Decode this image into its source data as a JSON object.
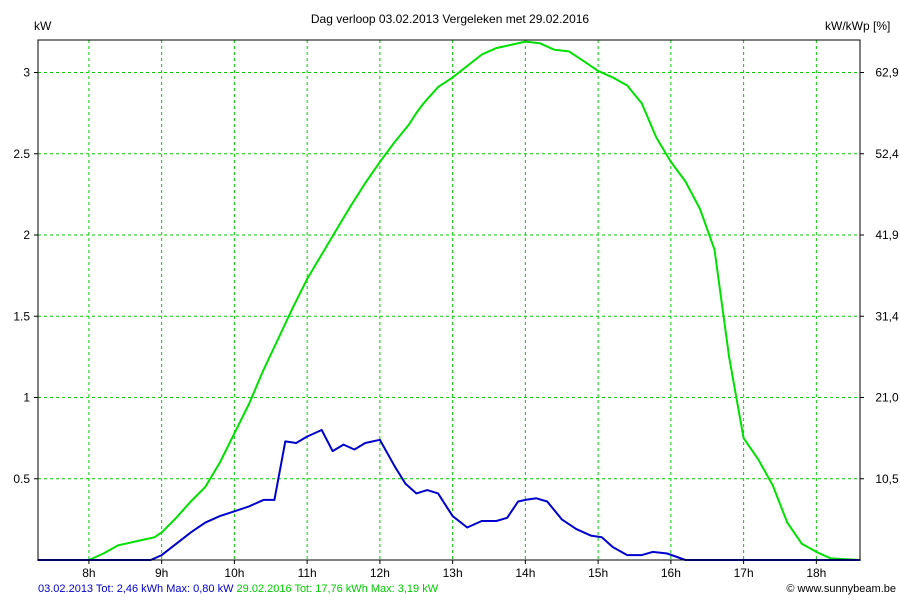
{
  "chart_data": {
    "type": "line",
    "title": "Dag  verloop 03.02.2013   Vergeleken met 29.02.2016",
    "ylabel_left": "kW",
    "ylabel_right": "kW/kWp [%]",
    "xlim": [
      7.3,
      18.6
    ],
    "ylim": [
      0,
      3.2
    ],
    "x_ticks": [
      8,
      9,
      10,
      11,
      12,
      13,
      14,
      15,
      16,
      17,
      18
    ],
    "x_tick_labels": [
      "8h",
      "9h",
      "10h",
      "11h",
      "12h",
      "13h",
      "14h",
      "15h",
      "16h",
      "17h",
      "18h"
    ],
    "y_ticks": [
      0.5,
      1,
      1.5,
      2,
      2.5,
      3
    ],
    "y_tick_labels": [
      "0.5",
      "1",
      "1.5",
      "2",
      "2.5",
      "3"
    ],
    "y2_tick_labels": [
      "10,5",
      "21,0",
      "31,4",
      "41,9",
      "52,4",
      "62,9"
    ],
    "grid": true,
    "series": [
      {
        "name": "29.02.2016",
        "color": "#00e000",
        "x": [
          7.3,
          7.75,
          8.0,
          8.2,
          8.4,
          8.6,
          8.8,
          8.9,
          9.0,
          9.2,
          9.4,
          9.6,
          9.8,
          10.0,
          10.2,
          10.4,
          10.6,
          10.8,
          11.0,
          11.2,
          11.4,
          11.6,
          11.8,
          12.0,
          12.2,
          12.4,
          12.5,
          12.6,
          12.8,
          13.0,
          13.2,
          13.4,
          13.6,
          13.8,
          14.0,
          14.2,
          14.4,
          14.6,
          14.8,
          15.0,
          15.2,
          15.4,
          15.6,
          15.8,
          16.0,
          16.2,
          16.4,
          16.6,
          16.8,
          17.0,
          17.2,
          17.4,
          17.6,
          17.8,
          18.0,
          18.2,
          18.6
        ],
        "y": [
          0,
          0,
          0,
          0.04,
          0.09,
          0.11,
          0.13,
          0.14,
          0.17,
          0.26,
          0.36,
          0.45,
          0.6,
          0.78,
          0.96,
          1.17,
          1.36,
          1.55,
          1.73,
          1.88,
          2.03,
          2.18,
          2.32,
          2.45,
          2.57,
          2.68,
          2.75,
          2.81,
          2.91,
          2.97,
          3.04,
          3.11,
          3.15,
          3.17,
          3.19,
          3.18,
          3.14,
          3.13,
          3.07,
          3.01,
          2.97,
          2.92,
          2.81,
          2.6,
          2.45,
          2.33,
          2.16,
          1.91,
          1.25,
          0.75,
          0.62,
          0.46,
          0.23,
          0.1,
          0.05,
          0.01,
          0
        ],
        "legend_label": "29.02.2016 Tot: 17,76 kWh Max: 3,19 kW"
      },
      {
        "name": "03.02.2013",
        "color": "#0000cc",
        "x": [
          7.3,
          8.85,
          9.0,
          9.2,
          9.4,
          9.6,
          9.8,
          10.0,
          10.2,
          10.4,
          10.55,
          10.7,
          10.85,
          11.0,
          11.2,
          11.35,
          11.5,
          11.65,
          11.8,
          12.0,
          12.2,
          12.35,
          12.5,
          12.65,
          12.8,
          13.0,
          13.2,
          13.4,
          13.6,
          13.75,
          13.9,
          14.0,
          14.15,
          14.3,
          14.5,
          14.7,
          14.9,
          15.05,
          15.2,
          15.4,
          15.6,
          15.75,
          15.95,
          16.2,
          18.0,
          18.6
        ],
        "y": [
          0,
          0,
          0.03,
          0.1,
          0.17,
          0.23,
          0.27,
          0.3,
          0.33,
          0.37,
          0.37,
          0.73,
          0.72,
          0.76,
          0.8,
          0.67,
          0.71,
          0.68,
          0.72,
          0.74,
          0.58,
          0.47,
          0.41,
          0.43,
          0.41,
          0.27,
          0.2,
          0.24,
          0.24,
          0.26,
          0.36,
          0.37,
          0.38,
          0.36,
          0.25,
          0.19,
          0.15,
          0.14,
          0.08,
          0.03,
          0.03,
          0.05,
          0.04,
          0.0,
          0,
          0
        ],
        "legend_label": "03.02.2013 Tot: 2,46 kWh Max: 0,80 kW"
      }
    ],
    "footer": {
      "left_blue": "03.02.2013 Tot: 2,46 kWh Max: 0,80 kW",
      "left_green": "29.02.2016 Tot: 17,76 kWh Max: 3,19 kW",
      "right": "© www.sunnybeam.be"
    },
    "colors": {
      "grid": "#00cc00",
      "axis": "#000000",
      "green_series": "#00e000",
      "blue_series": "#0000cc"
    }
  }
}
